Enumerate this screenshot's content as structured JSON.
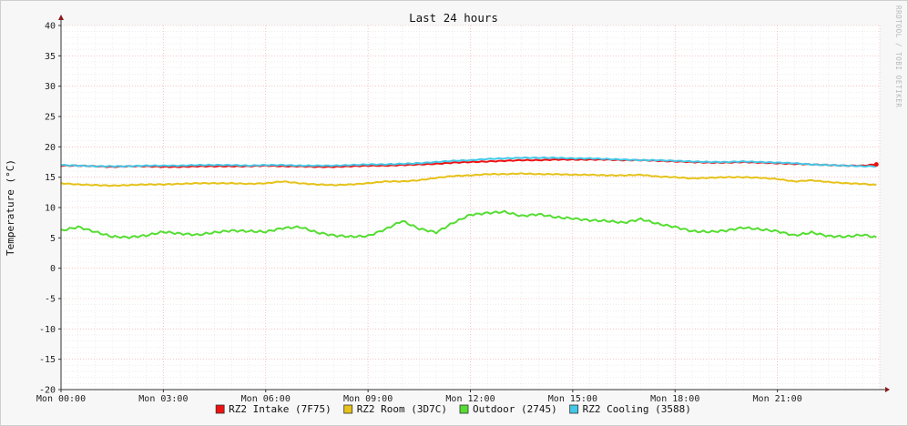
{
  "chart_data": {
    "type": "line",
    "title": "Last 24 hours",
    "ylabel": "Temperature (°C)",
    "xlabel": "",
    "watermark": "RRDTOOL / TOBI OETIKER",
    "ylim": [
      -20,
      40
    ],
    "yticks": [
      -20,
      -15,
      -10,
      -5,
      0,
      5,
      10,
      15,
      20,
      25,
      30,
      35,
      40
    ],
    "xlim": [
      0,
      24
    ],
    "xticks": [
      0,
      3,
      6,
      9,
      12,
      15,
      18,
      21
    ],
    "xtick_labels": [
      "Mon 00:00",
      "Mon 03:00",
      "Mon 06:00",
      "Mon 09:00",
      "Mon 12:00",
      "Mon 15:00",
      "Mon 18:00",
      "Mon 21:00"
    ],
    "grid": true,
    "legend_position": "bottom",
    "x": [
      0,
      0.5,
      1,
      1.5,
      2,
      2.5,
      3,
      3.5,
      4,
      4.5,
      5,
      5.5,
      6,
      6.5,
      7,
      7.5,
      8,
      8.5,
      9,
      9.5,
      10,
      10.5,
      11,
      11.5,
      12,
      12.5,
      13,
      13.5,
      14,
      14.5,
      15,
      15.5,
      16,
      16.5,
      17,
      17.5,
      18,
      18.5,
      19,
      19.5,
      20,
      20.5,
      21,
      21.5,
      22,
      22.5,
      23,
      23.5,
      23.9
    ],
    "series": [
      {
        "name": "RZ2 Intake (7F75)",
        "color": "#ee1111",
        "values": [
          16.9,
          16.9,
          16.8,
          16.7,
          16.8,
          16.8,
          16.7,
          16.7,
          16.8,
          16.8,
          16.8,
          16.8,
          16.9,
          16.8,
          16.8,
          16.7,
          16.7,
          16.8,
          16.9,
          16.9,
          17.0,
          17.1,
          17.2,
          17.4,
          17.5,
          17.6,
          17.7,
          17.8,
          17.8,
          17.9,
          17.9,
          17.9,
          17.9,
          17.8,
          17.8,
          17.7,
          17.6,
          17.5,
          17.4,
          17.4,
          17.5,
          17.4,
          17.3,
          17.2,
          17.1,
          17.0,
          16.9,
          16.9,
          17.1
        ]
      },
      {
        "name": "RZ2 Room (3D7C)",
        "color": "#e6c21a",
        "values": [
          14.0,
          13.8,
          13.7,
          13.6,
          13.7,
          13.8,
          13.8,
          13.9,
          14.0,
          14.0,
          14.0,
          13.9,
          14.0,
          14.3,
          14.0,
          13.8,
          13.7,
          13.8,
          14.0,
          14.3,
          14.3,
          14.5,
          14.9,
          15.2,
          15.3,
          15.5,
          15.5,
          15.6,
          15.5,
          15.5,
          15.4,
          15.4,
          15.3,
          15.3,
          15.4,
          15.1,
          15.0,
          14.8,
          14.9,
          15.0,
          15.0,
          14.9,
          14.7,
          14.3,
          14.5,
          14.2,
          14.0,
          13.9,
          13.7
        ]
      },
      {
        "name": "Outdoor (2745)",
        "color": "#55dd33",
        "values": [
          6.2,
          6.8,
          6.0,
          5.2,
          5.1,
          5.4,
          6.0,
          5.7,
          5.5,
          5.9,
          6.2,
          6.1,
          6.0,
          6.6,
          6.8,
          5.9,
          5.4,
          5.2,
          5.3,
          6.4,
          7.8,
          6.5,
          5.9,
          7.5,
          8.8,
          9.1,
          9.3,
          8.6,
          8.9,
          8.4,
          8.2,
          7.9,
          7.8,
          7.5,
          8.1,
          7.3,
          6.8,
          6.1,
          6.0,
          6.2,
          6.7,
          6.4,
          6.1,
          5.4,
          5.9,
          5.3,
          5.2,
          5.5,
          5.1
        ]
      },
      {
        "name": "RZ2 Cooling (3588)",
        "color": "#44c8e8",
        "values": [
          17.0,
          16.9,
          16.8,
          16.8,
          16.8,
          16.9,
          16.9,
          16.9,
          17.0,
          17.0,
          17.0,
          16.9,
          17.0,
          17.0,
          16.9,
          16.9,
          16.9,
          17.0,
          17.1,
          17.1,
          17.2,
          17.3,
          17.5,
          17.7,
          17.8,
          18.0,
          18.1,
          18.2,
          18.2,
          18.2,
          18.1,
          18.1,
          18.0,
          17.9,
          17.8,
          17.8,
          17.7,
          17.6,
          17.5,
          17.5,
          17.6,
          17.5,
          17.4,
          17.3,
          17.1,
          17.0,
          16.9,
          16.8,
          16.8
        ]
      }
    ]
  }
}
